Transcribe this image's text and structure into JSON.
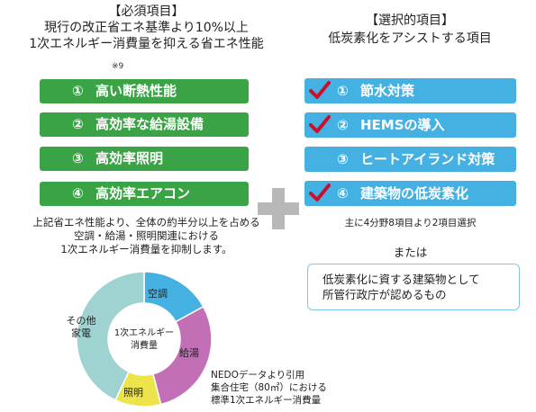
{
  "left": {
    "title": "【必須項目】",
    "sub1": "現行の改正省エネ基準より10%以上",
    "sub2": "1次エネルギー消費量を抑える省エネ性能",
    "note": "※9",
    "items": [
      {
        "num": "①",
        "label": "高い断熱性能"
      },
      {
        "num": "②",
        "label": "高効率な給湯設備"
      },
      {
        "num": "③",
        "label": "高効率照明"
      },
      {
        "num": "④",
        "label": "高効率エアコン"
      }
    ],
    "desc1": "上記省エネ性能より、全体の約半分以上を占める",
    "desc2": "空調・給湯・照明関連における",
    "desc3": "1次エネルギー消費量を抑制します。"
  },
  "right": {
    "title": "【選択的項目】",
    "sub": "低炭素化をアシストする項目",
    "items": [
      {
        "num": "①",
        "label": "節水対策",
        "checked": true
      },
      {
        "num": "②",
        "label": "HEMSの導入",
        "checked": true
      },
      {
        "num": "③",
        "label": "ヒートアイランド対策",
        "checked": false
      },
      {
        "num": "④",
        "label": "建築物の低炭素化",
        "checked": true
      }
    ],
    "selection_note": "主に4分野8項目より2項目選択",
    "or_label": "または",
    "box_line1": "低炭素化に資する建築物として",
    "box_line2": "所管行政庁が認めるもの"
  },
  "donut": {
    "center1": "1次エネルギー",
    "center2": "消費量",
    "segments": [
      {
        "name": "空調",
        "share": 0.17,
        "color": "#45b1e3"
      },
      {
        "name": "給湯",
        "share": 0.29,
        "color": "#c26fb5"
      },
      {
        "name": "照明",
        "share": 0.11,
        "color": "#ede34b"
      },
      {
        "name": "その他家電",
        "share": 0.43,
        "color": "#9fd3d1"
      }
    ],
    "label_other1": "その他",
    "label_other2": "家電"
  },
  "source": {
    "line1": "NEDOデータより引用",
    "line2": "集合住宅（80㎡）における",
    "line3": "標準1次エネルギー消費量"
  },
  "colors": {
    "green": "#3aa346",
    "blue": "#45b1e3",
    "check": "#c8102e",
    "plus": "#b8b8b8"
  }
}
